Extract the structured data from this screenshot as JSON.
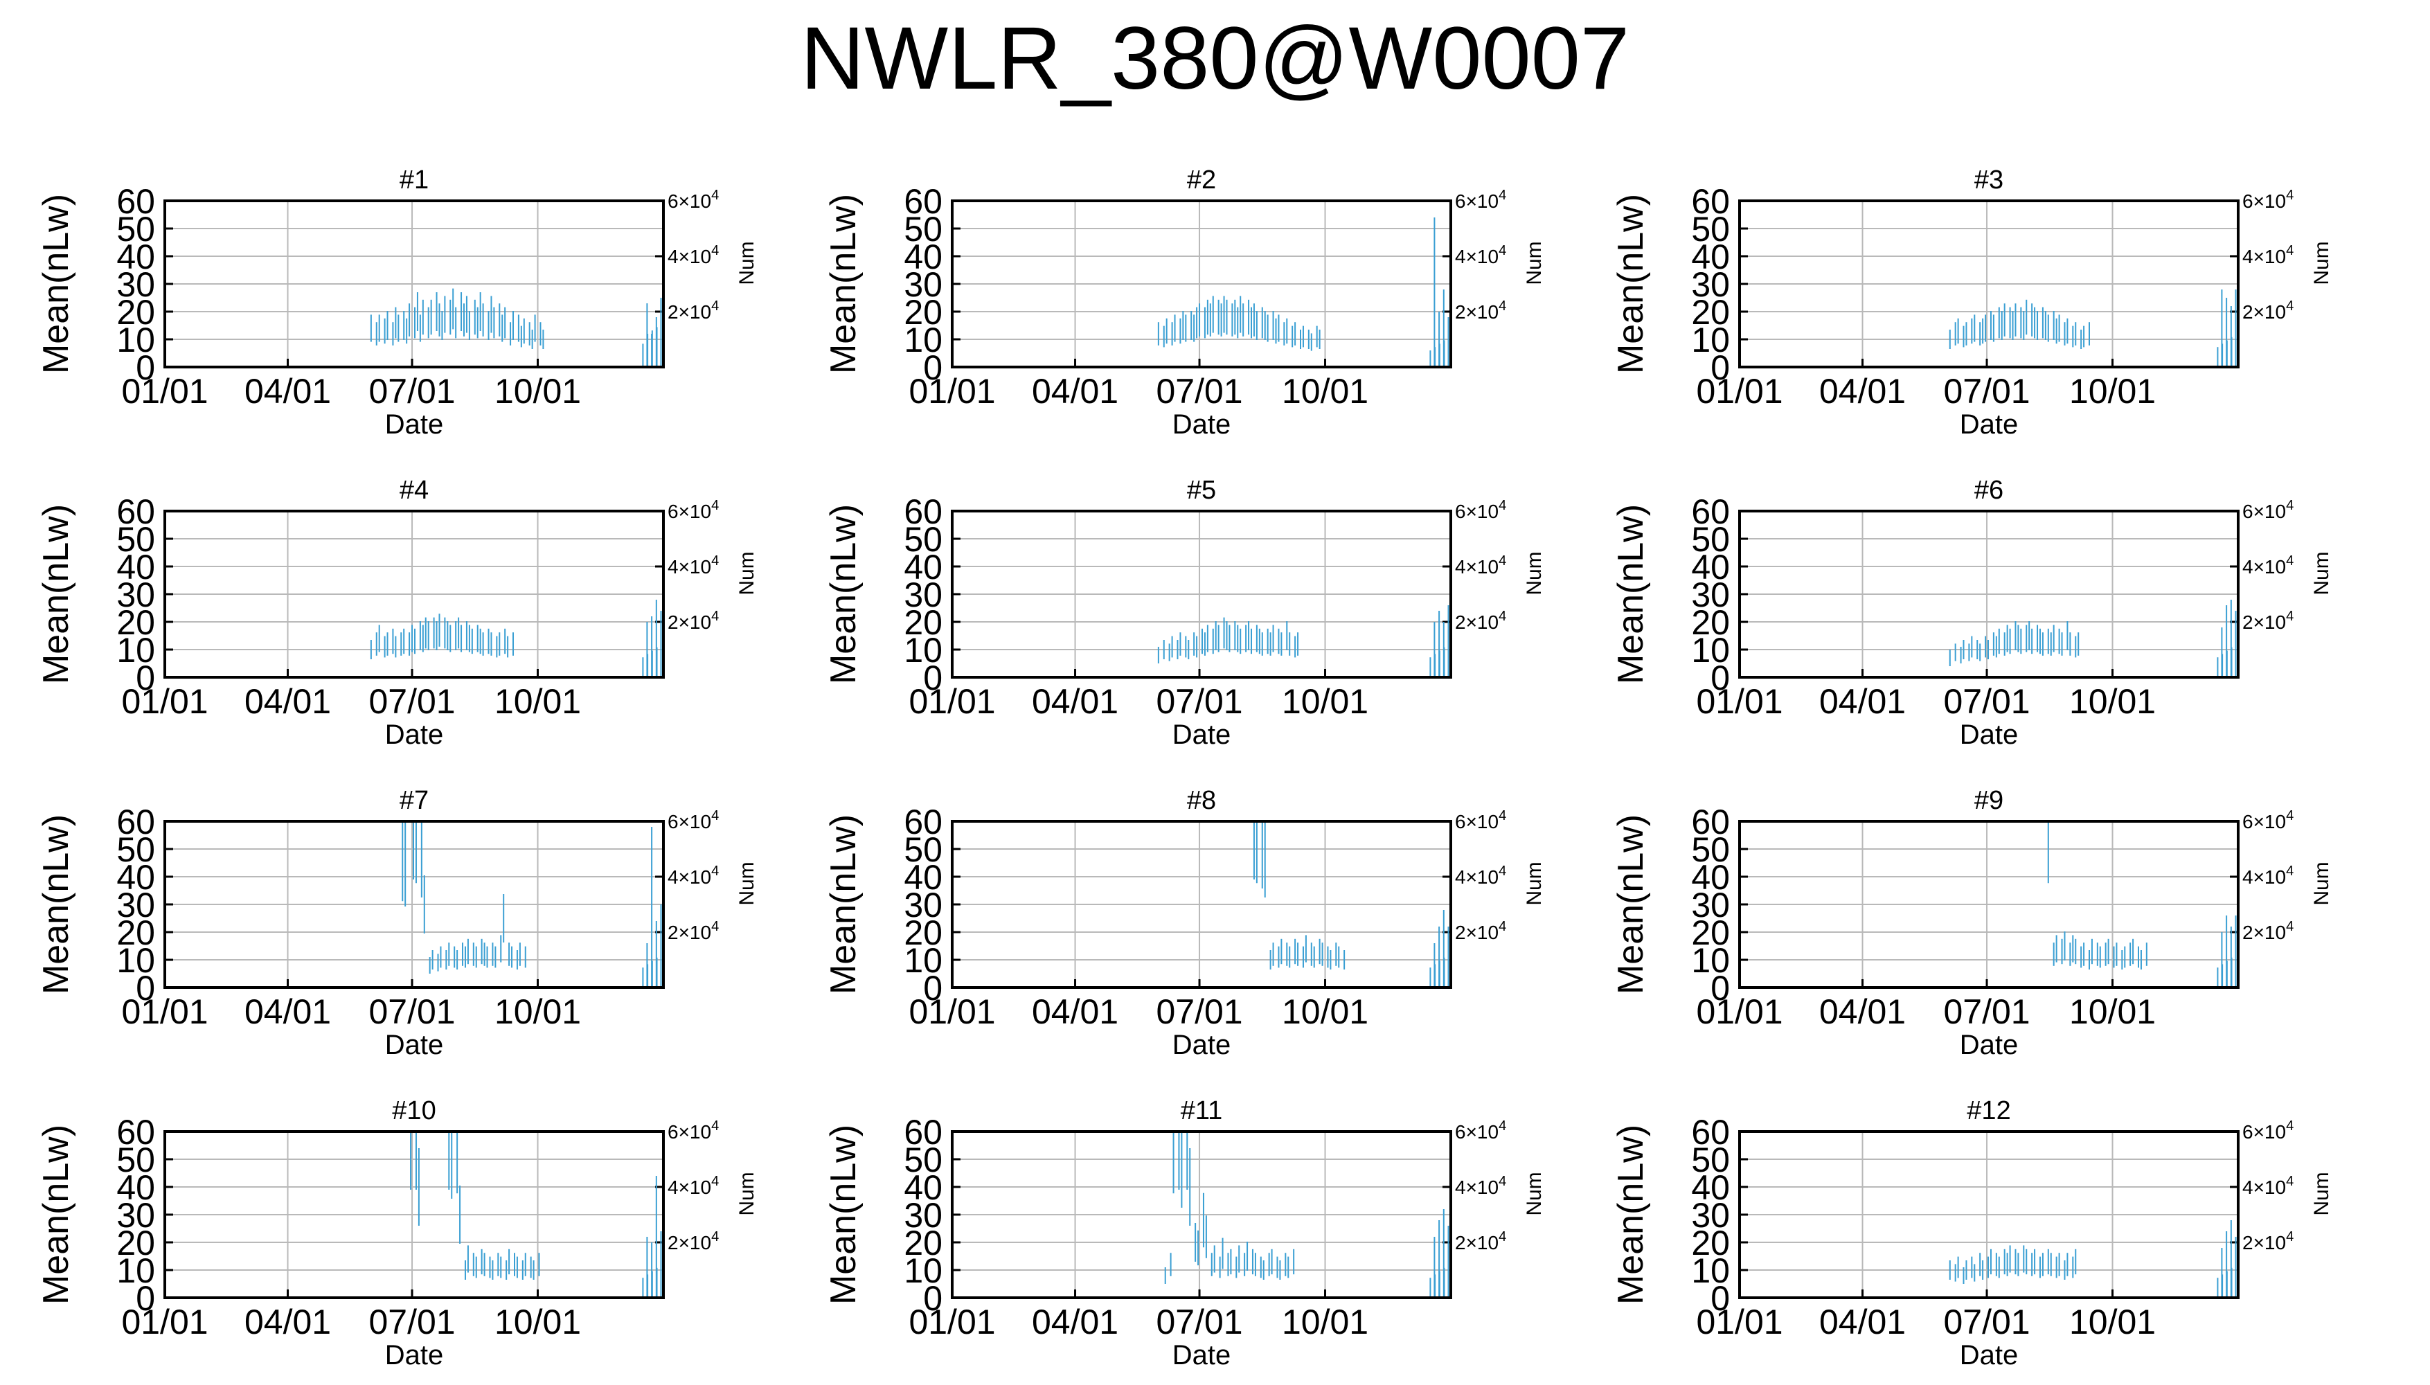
{
  "title": "NWLR_380@W0007",
  "colors": {
    "series": "#3a9fd3",
    "grid": "#b9b9b9",
    "axis": "#000000"
  },
  "axes": {
    "ylabel": "Mean(nLw)",
    "xlabel": "Date",
    "y2label": "Num",
    "y_ticks": [
      "0",
      "10",
      "20",
      "30",
      "40",
      "50",
      "60"
    ],
    "x_ticks": [
      "01/01",
      "04/01",
      "07/01",
      "10/01"
    ],
    "y2_ticks": [
      {
        "base": "2×10",
        "exp": "4"
      },
      {
        "base": "4×10",
        "exp": "4"
      },
      {
        "base": "6×10",
        "exp": "4"
      }
    ]
  },
  "chart_data": [
    {
      "type": "bar",
      "title": "#1",
      "ylim": [
        0,
        60
      ],
      "y2lim": [
        0,
        60000
      ],
      "x_range_days": [
        0,
        365
      ],
      "series_start_day": 151,
      "values": [
        14,
        0,
        12,
        14,
        0,
        13,
        15,
        0,
        12,
        16,
        14,
        0,
        15,
        13,
        17,
        0,
        16,
        20,
        14,
        18,
        0,
        16,
        18,
        0,
        20,
        17,
        15,
        19,
        0,
        18,
        21,
        16,
        0,
        20,
        17,
        19,
        15,
        0,
        18,
        16,
        20,
        17,
        0,
        15,
        19,
        16,
        0,
        17,
        14,
        16,
        0,
        12,
        15,
        0,
        14,
        11,
        13,
        0,
        12,
        10,
        14,
        0,
        12,
        10,
        0,
        0,
        0,
        0,
        0,
        0,
        0,
        0,
        0,
        0,
        0,
        0,
        0,
        0,
        0,
        0,
        0,
        0,
        0,
        0,
        0,
        0,
        0,
        0,
        0,
        0,
        0,
        0,
        0,
        0,
        0,
        0,
        0,
        0,
        0,
        0,
        0,
        0,
        0,
        0,
        0,
        0,
        0,
        0,
        0,
        0,
        0,
        0,
        0,
        0,
        0,
        0,
        0,
        0,
        0,
        0,
        0,
        0,
        0,
        0,
        0,
        0,
        0,
        0,
        0,
        0,
        0,
        0,
        0,
        0,
        0,
        0,
        0,
        0,
        0,
        0,
        0,
        0,
        0,
        0,
        0,
        0,
        0,
        0,
        0,
        0,
        0,
        0,
        0,
        0,
        0,
        0,
        0,
        0,
        0,
        0,
        0,
        0,
        0,
        0,
        0,
        0,
        0,
        0,
        0,
        0,
        0,
        0,
        0,
        0,
        0,
        0,
        0,
        0,
        0,
        0,
        0,
        0,
        0,
        0,
        0,
        0,
        0,
        0,
        0,
        0,
        0,
        0,
        0,
        0,
        0,
        0,
        0,
        0,
        0,
        0,
        0,
        0,
        0,
        0,
        0,
        0,
        0,
        0,
        0,
        0,
        0,
        0,
        0,
        0,
        0
      ],
      "num_tail": [
        14,
        23000,
        20,
        12000,
        22,
        18000,
        24,
        25000
      ]
    },
    {
      "type": "bar",
      "title": "#2",
      "ylim": [
        0,
        60
      ],
      "y2lim": [
        0,
        60000
      ],
      "x_range_days": [
        0,
        365
      ],
      "series_start_day": 151,
      "values": [
        12,
        0,
        11,
        13,
        0,
        12,
        14,
        0,
        13,
        15,
        14,
        0,
        15,
        14,
        16,
        17,
        0,
        16,
        18,
        17,
        19,
        0,
        18,
        17,
        19,
        18,
        0,
        17,
        18,
        16,
        19,
        17,
        0,
        18,
        16,
        17,
        15,
        0,
        16,
        15,
        14,
        0,
        15,
        13,
        14,
        0,
        12,
        13,
        0,
        11,
        12,
        0,
        10,
        11,
        0,
        10,
        9,
        0,
        11,
        10,
        0
      ],
      "num_tail": [
        10,
        54000,
        12,
        20000,
        14,
        28000,
        16,
        18000
      ]
    },
    {
      "type": "bar",
      "title": "#3",
      "ylim": [
        0,
        60
      ],
      "y2lim": [
        0,
        60000
      ],
      "x_range_days": [
        0,
        365
      ],
      "series_start_day": 154,
      "values": [
        10,
        0,
        12,
        13,
        0,
        11,
        12,
        0,
        13,
        14,
        0,
        12,
        13,
        14,
        0,
        15,
        14,
        0,
        16,
        15,
        17,
        0,
        16,
        15,
        17,
        0,
        16,
        15,
        18,
        0,
        17,
        16,
        15,
        0,
        16,
        15,
        14,
        0,
        15,
        13,
        14,
        0,
        12,
        13,
        0,
        11,
        12,
        0,
        10,
        11,
        0,
        12
      ],
      "num_tail": [
        12,
        28000,
        14,
        25000,
        16,
        22000,
        18,
        28000
      ]
    },
    {
      "type": "bar",
      "title": "#4",
      "ylim": [
        0,
        60
      ],
      "y2lim": [
        0,
        60000
      ],
      "x_range_days": [
        0,
        365
      ],
      "series_start_day": 151,
      "values": [
        10,
        0,
        12,
        14,
        0,
        11,
        12,
        0,
        13,
        11,
        0,
        12,
        13,
        0,
        12,
        14,
        13,
        0,
        15,
        14,
        16,
        15,
        0,
        16,
        15,
        17,
        0,
        16,
        15,
        14,
        0,
        15,
        16,
        14,
        0,
        15,
        14,
        13,
        0,
        14,
        13,
        12,
        0,
        13,
        12,
        0,
        11,
        12,
        0,
        13,
        11,
        0,
        12
      ],
      "num_tail": [
        12,
        20000,
        14,
        22000,
        16,
        28000,
        18,
        24000
      ]
    },
    {
      "type": "bar",
      "title": "#5",
      "ylim": [
        0,
        60
      ],
      "y2lim": [
        0,
        60000
      ],
      "x_range_days": [
        0,
        365
      ],
      "series_start_day": 151,
      "values": [
        8,
        0,
        10,
        0,
        9,
        11,
        0,
        10,
        12,
        0,
        11,
        10,
        0,
        12,
        11,
        0,
        13,
        12,
        14,
        0,
        13,
        15,
        14,
        0,
        16,
        15,
        14,
        0,
        15,
        14,
        13,
        0,
        14,
        15,
        13,
        0,
        14,
        13,
        12,
        0,
        13,
        12,
        14,
        0,
        13,
        12,
        0,
        15,
        12,
        0,
        11,
        12
      ],
      "num_tail": [
        12,
        20000,
        14,
        24000,
        16,
        20000,
        18,
        26000
      ]
    },
    {
      "type": "bar",
      "title": "#6",
      "ylim": [
        0,
        60
      ],
      "y2lim": [
        0,
        60000
      ],
      "x_range_days": [
        0,
        365
      ],
      "series_start_day": 154,
      "values": [
        7,
        0,
        9,
        0,
        8,
        10,
        0,
        9,
        11,
        0,
        10,
        9,
        0,
        11,
        10,
        0,
        12,
        11,
        13,
        0,
        12,
        14,
        13,
        0,
        15,
        14,
        13,
        0,
        14,
        15,
        13,
        0,
        14,
        13,
        12,
        0,
        13,
        12,
        14,
        0,
        13,
        12,
        0,
        15,
        12,
        0,
        11,
        12
      ],
      "num_tail": [
        12,
        18000,
        14,
        26000,
        16,
        28000,
        18,
        24000
      ]
    },
    {
      "type": "bar",
      "title": "#7",
      "ylim": [
        0,
        60
      ],
      "y2lim": [
        0,
        60000
      ],
      "x_range_days": [
        0,
        365
      ],
      "series_start_day": 166,
      "values": [
        0,
        0,
        0,
        0,
        48,
        45,
        0,
        0,
        60,
        58,
        0,
        50,
        30,
        0,
        8,
        10,
        0,
        9,
        11,
        0,
        10,
        12,
        0,
        11,
        10,
        0,
        12,
        11,
        13,
        0,
        12,
        11,
        0,
        13,
        12,
        11,
        0,
        12,
        11,
        0,
        14,
        25,
        0,
        12,
        11,
        0,
        10,
        12,
        0,
        11
      ],
      "num_tail": [
        12,
        16000,
        14,
        58000,
        16,
        24000,
        18,
        30000
      ]
    },
    {
      "type": "bar",
      "title": "#8",
      "ylim": [
        0,
        60
      ],
      "y2lim": [
        0,
        60000
      ],
      "x_range_days": [
        0,
        365
      ],
      "series_start_day": 221,
      "values": [
        60,
        58,
        0,
        55,
        50,
        0,
        10,
        12,
        0,
        11,
        13,
        0,
        12,
        11,
        0,
        13,
        12,
        0,
        11,
        14,
        0,
        12,
        11,
        0,
        13,
        12,
        0,
        11,
        10,
        0,
        12,
        11,
        0,
        10
      ],
      "num_tail": [
        12,
        16000,
        14,
        22000,
        16,
        28000,
        18,
        22000
      ]
    },
    {
      "type": "bar",
      "title": "#9",
      "ylim": [
        0,
        60
      ],
      "y2lim": [
        0,
        60000
      ],
      "x_range_days": [
        0,
        365
      ],
      "series_start_day": 226,
      "values": [
        58,
        0,
        12,
        14,
        0,
        13,
        15,
        0,
        12,
        14,
        13,
        0,
        11,
        12,
        0,
        10,
        13,
        0,
        12,
        11,
        0,
        12,
        13,
        0,
        11,
        12,
        0,
        10,
        11,
        0,
        12,
        13,
        0,
        11,
        10,
        0,
        12
      ],
      "num_tail": [
        12,
        20000,
        14,
        26000,
        16,
        22000,
        18,
        26000
      ]
    },
    {
      "type": "bar",
      "title": "#10",
      "ylim": [
        0,
        60
      ],
      "y2lim": [
        0,
        60000
      ],
      "x_range_days": [
        0,
        365
      ],
      "series_start_day": 180,
      "values": [
        60,
        0,
        60,
        40,
        0,
        0,
        0,
        0,
        0,
        0,
        0,
        0,
        0,
        0,
        60,
        55,
        0,
        58,
        30,
        0,
        10,
        14,
        0,
        12,
        11,
        0,
        13,
        12,
        0,
        11,
        10,
        0,
        12,
        11,
        0,
        10,
        13,
        0,
        12,
        11,
        0,
        10,
        12,
        0,
        11,
        10,
        0,
        12
      ],
      "num_tail": [
        12,
        22000,
        14,
        20000,
        16,
        44000,
        18,
        24000
      ]
    },
    {
      "type": "bar",
      "title": "#11",
      "ylim": [
        0,
        60
      ],
      "y2lim": [
        0,
        60000
      ],
      "x_range_days": [
        0,
        365
      ],
      "series_start_day": 156,
      "values": [
        8,
        0,
        12,
        58,
        0,
        60,
        50,
        0,
        60,
        40,
        0,
        20,
        18,
        0,
        28,
        22,
        0,
        12,
        14,
        0,
        11,
        16,
        0,
        12,
        13,
        0,
        11,
        14,
        0,
        12,
        15,
        0,
        13,
        12,
        0,
        11,
        10,
        0,
        12,
        13,
        0,
        11,
        10,
        0,
        12,
        11,
        0,
        13
      ],
      "num_tail": [
        12,
        22000,
        14,
        28000,
        16,
        32000,
        18,
        26000
      ]
    },
    {
      "type": "bar",
      "title": "#12",
      "ylim": [
        0,
        60
      ],
      "y2lim": [
        0,
        60000
      ],
      "x_range_days": [
        0,
        365
      ],
      "series_start_day": 154,
      "values": [
        10,
        0,
        9,
        11,
        0,
        8,
        10,
        0,
        11,
        9,
        0,
        12,
        10,
        0,
        11,
        13,
        0,
        12,
        11,
        0,
        13,
        12,
        14,
        0,
        13,
        12,
        0,
        14,
        13,
        0,
        12,
        13,
        0,
        11,
        12,
        0,
        13,
        12,
        0,
        11,
        12,
        0,
        10,
        12,
        0,
        11,
        13
      ],
      "num_tail": [
        12,
        18000,
        14,
        24000,
        16,
        28000,
        18,
        22000
      ]
    }
  ]
}
